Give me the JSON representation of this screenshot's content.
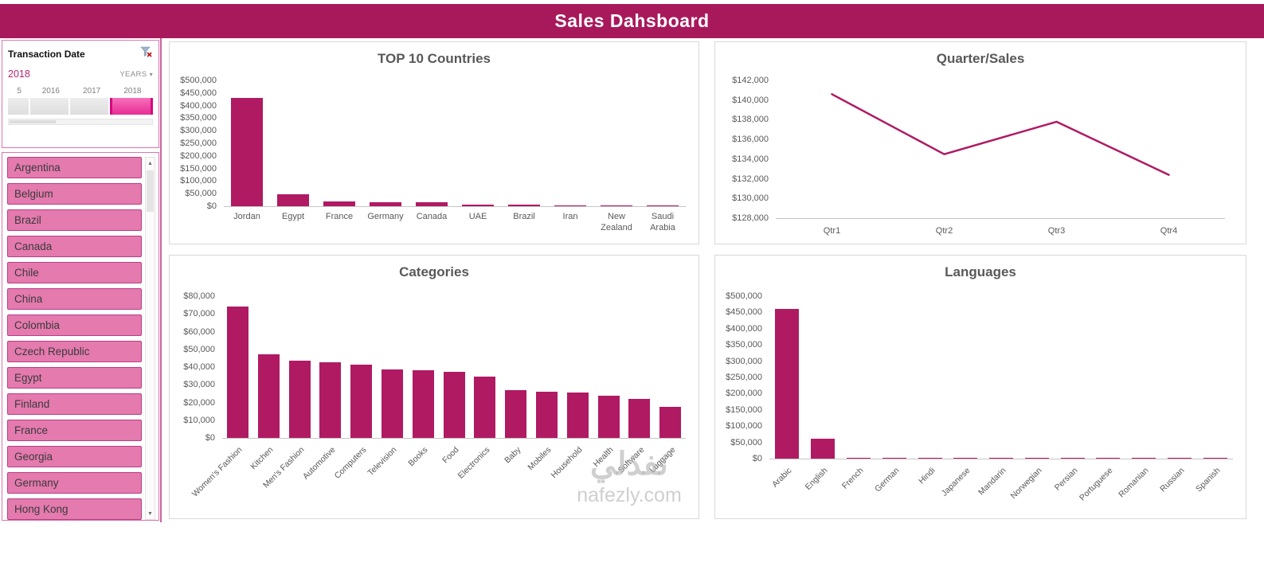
{
  "header": {
    "title": "Sales Dahsboard"
  },
  "timeline": {
    "title": "Transaction Date",
    "selection_label": "2018",
    "level_label": "YEARS",
    "years": [
      "5",
      "2016",
      "2017",
      "2018"
    ],
    "selected_year": "2018"
  },
  "slicer": {
    "items": [
      "Argentina",
      "Belgium",
      "Brazil",
      "Canada",
      "Chile",
      "China",
      "Colombia",
      "Czech Republic",
      "Egypt",
      "Finland",
      "France",
      "Georgia",
      "Germany",
      "Hong Kong"
    ]
  },
  "colors": {
    "accent": "#B01A63",
    "header_bg": "#A8195C",
    "slicer_fill": "#E47AAE",
    "slicer_border": "#BA3D85",
    "timeline_selected": "#E62D95",
    "panel_border": "#D9D9D9",
    "title_text": "#595959"
  },
  "watermark": {
    "text": "نفذلي",
    "site": "nafezly.com"
  },
  "chart_data": [
    {
      "id": "top10-countries",
      "type": "bar",
      "title": "TOP 10 Countries",
      "categories": [
        "Jordan",
        "Egypt",
        "France",
        "Germany",
        "Canada",
        "UAE",
        "Brazil",
        "Iran",
        "New Zealand",
        "Saudi Arabia"
      ],
      "values": [
        430000,
        48000,
        20000,
        17000,
        16000,
        6000,
        5000,
        2500,
        2000,
        1800
      ],
      "xlabel": "",
      "ylabel": "",
      "ylim": [
        0,
        500000
      ],
      "ytick_step": 50000,
      "grid": false,
      "legend": false,
      "color": "#B01A63"
    },
    {
      "id": "quarter-sales",
      "type": "line",
      "title": "Quarter/Sales",
      "categories": [
        "Qtr1",
        "Qtr2",
        "Qtr3",
        "Qtr4"
      ],
      "values": [
        140600,
        134500,
        137800,
        132400
      ],
      "xlabel": "",
      "ylabel": "",
      "ylim": [
        128000,
        142000
      ],
      "ytick_step": 2000,
      "grid": false,
      "legend": false,
      "color": "#B01A63"
    },
    {
      "id": "categories",
      "type": "bar",
      "title": "Categories",
      "categories": [
        "Women's Fashion",
        "Kitchen",
        "Men's Fashion",
        "Automotive",
        "Computers",
        "Television",
        "Books",
        "Food",
        "Electronics",
        "Baby",
        "Mobiles",
        "Household",
        "Health",
        "Software",
        "Luggage"
      ],
      "values": [
        74000,
        47000,
        43500,
        42500,
        41500,
        38500,
        38000,
        37500,
        34500,
        27000,
        26000,
        25500,
        24000,
        22000,
        17500
      ],
      "xlabel": "",
      "ylabel": "",
      "ylim": [
        0,
        80000
      ],
      "ytick_step": 10000,
      "grid": false,
      "legend": false,
      "color": "#B01A63"
    },
    {
      "id": "languages",
      "type": "bar",
      "title": "Languages",
      "categories": [
        "Arabic",
        "English",
        "French",
        "German",
        "Hindi",
        "Japanese",
        "Mandarin",
        "Norwegian",
        "Persian",
        "Portuguese",
        "Romanian",
        "Russian",
        "Spanish"
      ],
      "values": [
        460000,
        62000,
        2500,
        2500,
        2500,
        2500,
        2500,
        2500,
        2500,
        2500,
        2500,
        2500,
        2500
      ],
      "xlabel": "",
      "ylabel": "",
      "ylim": [
        0,
        500000
      ],
      "ytick_step": 50000,
      "grid": false,
      "legend": false,
      "color": "#B01A63"
    }
  ]
}
